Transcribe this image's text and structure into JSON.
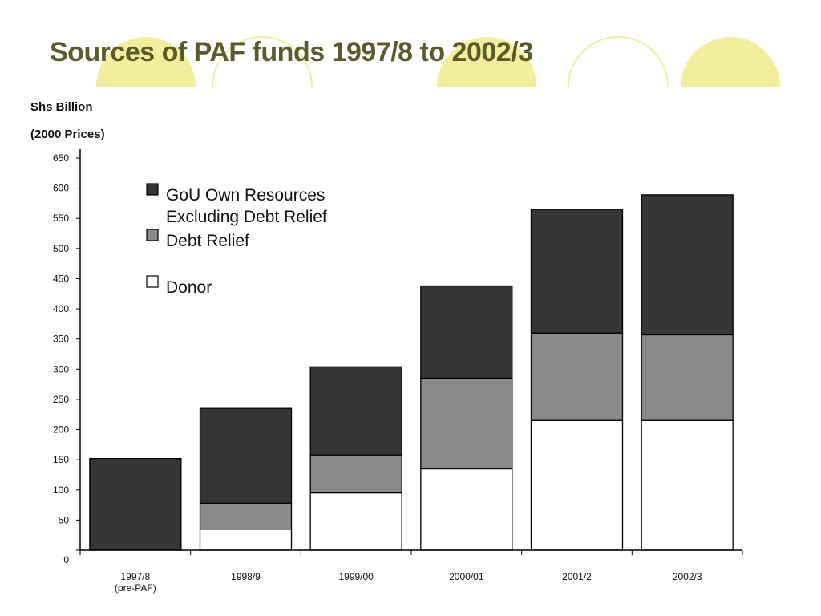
{
  "slide": {
    "title": "Sources of PAF funds 1997/8 to 2002/3",
    "accent_circle_color": "#f2ee9e",
    "title_color": "#5b5a2a"
  },
  "chart_data": {
    "type": "bar",
    "stacked": true,
    "title": "Sources of PAF funds 1997/8 to 2002/3",
    "ylabel": [
      "Shs Billion",
      "(2000 Prices)"
    ],
    "xlabel": "",
    "ylim": [
      0,
      650
    ],
    "yticks": [
      0,
      50,
      100,
      150,
      200,
      250,
      300,
      350,
      400,
      450,
      500,
      550,
      600,
      650
    ],
    "categories": [
      [
        "1997/8",
        "(pre-PAF)"
      ],
      [
        "1998/9"
      ],
      [
        "1999/00"
      ],
      [
        "2000/01"
      ],
      [
        "2001/2"
      ],
      [
        "2002/3"
      ]
    ],
    "series": [
      {
        "name": "Donor",
        "color": "#ffffff",
        "values": [
          0,
          35,
          95,
          135,
          215,
          215
        ]
      },
      {
        "name": "Debt Relief",
        "color": "#8a8a8a",
        "values": [
          0,
          43,
          63,
          150,
          145,
          142
        ]
      },
      {
        "name": "GoU Own Resources Excluding Debt Relief",
        "color": "#363636",
        "values": [
          152,
          157,
          146,
          153,
          205,
          232
        ]
      }
    ],
    "legend": {
      "position": "top-left",
      "entries": [
        {
          "series": "GoU Own Resources Excluding Debt Relief",
          "lines": [
            "GoU Own Resources",
            "Excluding Debt Relief"
          ],
          "color": "#363636"
        },
        {
          "series": "Debt Relief",
          "lines": [
            "Debt Relief"
          ],
          "color": "#8a8a8a"
        },
        {
          "series": "Donor",
          "lines": [
            "Donor"
          ],
          "color": "#ffffff"
        }
      ]
    },
    "grid": false
  }
}
